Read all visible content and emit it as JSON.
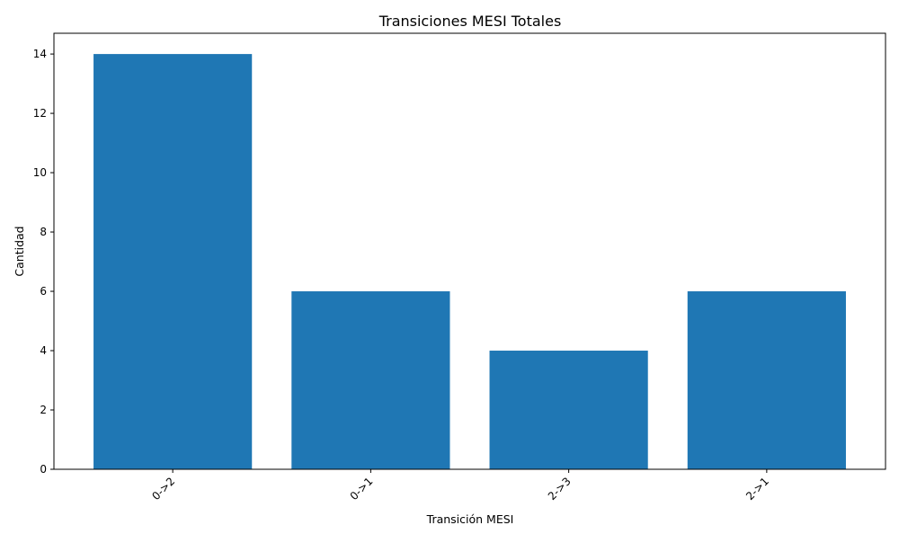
{
  "chart_data": {
    "type": "bar",
    "title": "Transiciones MESI Totales",
    "xlabel": "Transición MESI",
    "ylabel": "Cantidad",
    "categories": [
      "0->2",
      "0->1",
      "2->3",
      "2->1"
    ],
    "values": [
      14,
      6,
      4,
      6
    ],
    "ylim": [
      0,
      14.7
    ],
    "yticks": [
      0,
      2,
      4,
      6,
      8,
      10,
      12,
      14
    ],
    "bar_color": "#1f77b4",
    "grid": false,
    "legend": "none",
    "x_tick_rotation": "45 degrees"
  }
}
